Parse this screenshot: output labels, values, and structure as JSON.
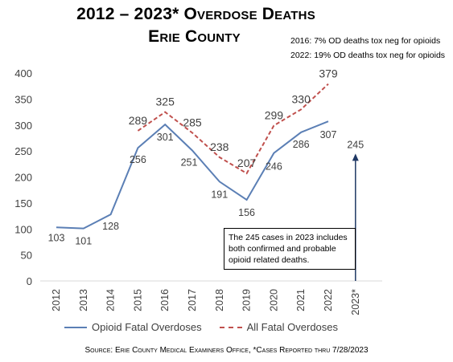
{
  "title_line1": "2012 – 2023* Overdose Deaths",
  "title_line2": "Erie County",
  "notes": [
    "2016: 7% OD deaths tox neg for opioids",
    "2022: 19% OD deaths tox neg for opioids"
  ],
  "callout": "The 245 cases in 2023 includes both confirmed and probable opioid related deaths.",
  "source": "Source: Erie County Medical Examiners Office, *Cases Reported thru 7/28/2023",
  "colors": {
    "opioid": "#5b7fb5",
    "all": "#c0504d",
    "arrow": "#1f3864"
  },
  "chart_data": {
    "type": "line",
    "categories": [
      "2012",
      "2013",
      "2014",
      "2015",
      "2016",
      "2017",
      "2018",
      "2019",
      "2020",
      "2021",
      "2022",
      "2023*"
    ],
    "ylim": [
      0,
      400
    ],
    "yticks": [
      0,
      50,
      100,
      150,
      200,
      250,
      300,
      350,
      400
    ],
    "series": [
      {
        "name": "Opioid Fatal Overdoses",
        "style": "solid",
        "values": [
          103,
          101,
          128,
          256,
          301,
          251,
          191,
          156,
          246,
          286,
          307,
          null
        ]
      },
      {
        "name": "All Fatal Overdoses",
        "style": "dashed",
        "values": [
          null,
          null,
          null,
          289,
          325,
          285,
          238,
          207,
          299,
          330,
          379,
          null
        ]
      }
    ],
    "partial_year": {
      "category": "2023*",
      "value": 245
    }
  }
}
